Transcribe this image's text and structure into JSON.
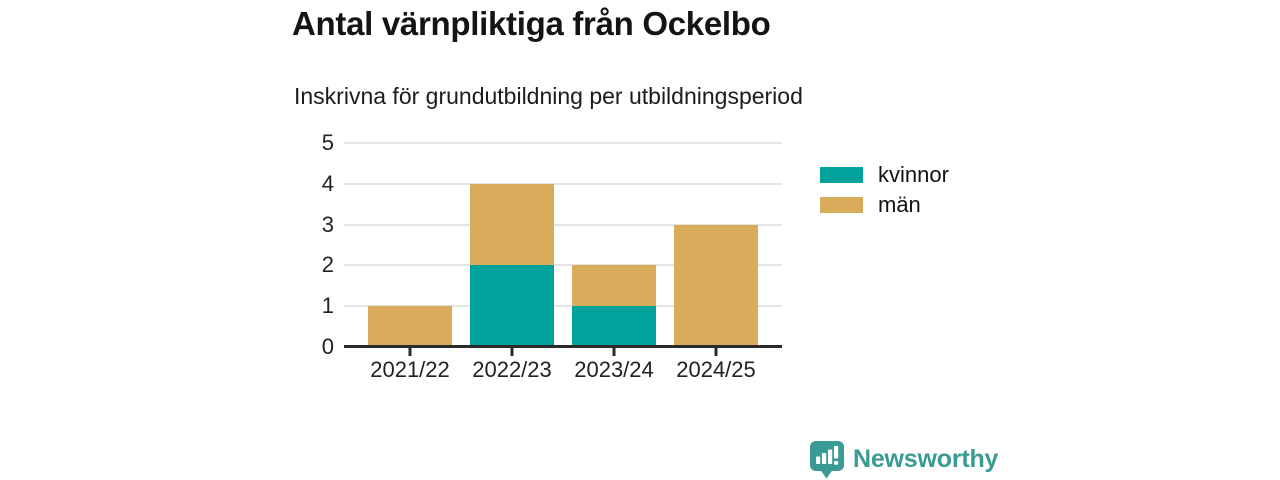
{
  "header": {
    "title": "Antal värnpliktiga från Ockelbo",
    "subtitle": "Inskrivna för grundutbildning per utbildningsperiod"
  },
  "chart_data": {
    "type": "bar",
    "stacked": true,
    "title": "Antal värnpliktiga från Ockelbo",
    "subtitle": "Inskrivna för grundutbildning per utbildningsperiod",
    "categories": [
      "2021/22",
      "2022/23",
      "2023/24",
      "2024/25"
    ],
    "series": [
      {
        "name": "kvinnor",
        "color": "#00a39b",
        "values": [
          0,
          2,
          1,
          0
        ]
      },
      {
        "name": "män",
        "color": "#d9ac5c",
        "values": [
          1,
          2,
          1,
          3
        ]
      }
    ],
    "stack_totals": [
      1,
      4,
      2,
      3
    ],
    "xlabel": "",
    "ylabel": "",
    "ylim": [
      0,
      5
    ],
    "yticks": [
      0,
      1,
      2,
      3,
      4,
      5
    ],
    "grid": true,
    "legend_position": "right-of-plot"
  },
  "footer": {
    "brand": "Newsworthy",
    "brand_color": "#3a9a94",
    "logo_icon": "speech-bubble-bar-chart-exclamation"
  },
  "colors": {
    "grid": "#e5e5e5",
    "axis": "#2a2a2a",
    "title_text": "#141414",
    "background": "#ffffff"
  }
}
